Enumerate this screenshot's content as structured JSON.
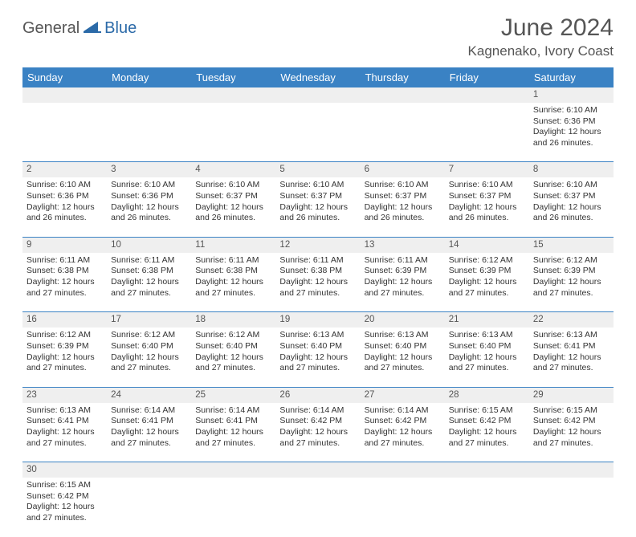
{
  "logo": {
    "general": "General",
    "blue": "Blue"
  },
  "title": "June 2024",
  "location": "Kagnenako, Ivory Coast",
  "headerColor": "#3a82c4",
  "dayNames": [
    "Sunday",
    "Monday",
    "Tuesday",
    "Wednesday",
    "Thursday",
    "Friday",
    "Saturday"
  ],
  "firstWeekday": 6,
  "daysInMonth": 30,
  "days": {
    "1": {
      "sunrise": "6:10 AM",
      "sunset": "6:36 PM",
      "daylight": "12 hours and 26 minutes."
    },
    "2": {
      "sunrise": "6:10 AM",
      "sunset": "6:36 PM",
      "daylight": "12 hours and 26 minutes."
    },
    "3": {
      "sunrise": "6:10 AM",
      "sunset": "6:36 PM",
      "daylight": "12 hours and 26 minutes."
    },
    "4": {
      "sunrise": "6:10 AM",
      "sunset": "6:37 PM",
      "daylight": "12 hours and 26 minutes."
    },
    "5": {
      "sunrise": "6:10 AM",
      "sunset": "6:37 PM",
      "daylight": "12 hours and 26 minutes."
    },
    "6": {
      "sunrise": "6:10 AM",
      "sunset": "6:37 PM",
      "daylight": "12 hours and 26 minutes."
    },
    "7": {
      "sunrise": "6:10 AM",
      "sunset": "6:37 PM",
      "daylight": "12 hours and 26 minutes."
    },
    "8": {
      "sunrise": "6:10 AM",
      "sunset": "6:37 PM",
      "daylight": "12 hours and 26 minutes."
    },
    "9": {
      "sunrise": "6:11 AM",
      "sunset": "6:38 PM",
      "daylight": "12 hours and 27 minutes."
    },
    "10": {
      "sunrise": "6:11 AM",
      "sunset": "6:38 PM",
      "daylight": "12 hours and 27 minutes."
    },
    "11": {
      "sunrise": "6:11 AM",
      "sunset": "6:38 PM",
      "daylight": "12 hours and 27 minutes."
    },
    "12": {
      "sunrise": "6:11 AM",
      "sunset": "6:38 PM",
      "daylight": "12 hours and 27 minutes."
    },
    "13": {
      "sunrise": "6:11 AM",
      "sunset": "6:39 PM",
      "daylight": "12 hours and 27 minutes."
    },
    "14": {
      "sunrise": "6:12 AM",
      "sunset": "6:39 PM",
      "daylight": "12 hours and 27 minutes."
    },
    "15": {
      "sunrise": "6:12 AM",
      "sunset": "6:39 PM",
      "daylight": "12 hours and 27 minutes."
    },
    "16": {
      "sunrise": "6:12 AM",
      "sunset": "6:39 PM",
      "daylight": "12 hours and 27 minutes."
    },
    "17": {
      "sunrise": "6:12 AM",
      "sunset": "6:40 PM",
      "daylight": "12 hours and 27 minutes."
    },
    "18": {
      "sunrise": "6:12 AM",
      "sunset": "6:40 PM",
      "daylight": "12 hours and 27 minutes."
    },
    "19": {
      "sunrise": "6:13 AM",
      "sunset": "6:40 PM",
      "daylight": "12 hours and 27 minutes."
    },
    "20": {
      "sunrise": "6:13 AM",
      "sunset": "6:40 PM",
      "daylight": "12 hours and 27 minutes."
    },
    "21": {
      "sunrise": "6:13 AM",
      "sunset": "6:40 PM",
      "daylight": "12 hours and 27 minutes."
    },
    "22": {
      "sunrise": "6:13 AM",
      "sunset": "6:41 PM",
      "daylight": "12 hours and 27 minutes."
    },
    "23": {
      "sunrise": "6:13 AM",
      "sunset": "6:41 PM",
      "daylight": "12 hours and 27 minutes."
    },
    "24": {
      "sunrise": "6:14 AM",
      "sunset": "6:41 PM",
      "daylight": "12 hours and 27 minutes."
    },
    "25": {
      "sunrise": "6:14 AM",
      "sunset": "6:41 PM",
      "daylight": "12 hours and 27 minutes."
    },
    "26": {
      "sunrise": "6:14 AM",
      "sunset": "6:42 PM",
      "daylight": "12 hours and 27 minutes."
    },
    "27": {
      "sunrise": "6:14 AM",
      "sunset": "6:42 PM",
      "daylight": "12 hours and 27 minutes."
    },
    "28": {
      "sunrise": "6:15 AM",
      "sunset": "6:42 PM",
      "daylight": "12 hours and 27 minutes."
    },
    "29": {
      "sunrise": "6:15 AM",
      "sunset": "6:42 PM",
      "daylight": "12 hours and 27 minutes."
    },
    "30": {
      "sunrise": "6:15 AM",
      "sunset": "6:42 PM",
      "daylight": "12 hours and 27 minutes."
    }
  },
  "labels": {
    "sunrise": "Sunrise:",
    "sunset": "Sunset:",
    "daylight": "Daylight:"
  }
}
